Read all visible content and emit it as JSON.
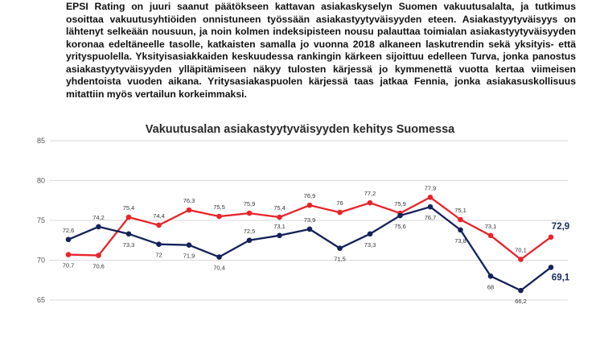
{
  "article": {
    "paragraph": "EPSI Rating on juuri saanut päätökseen kattavan asiakaskyselyn Suomen vakuutusalalta, ja tutkimus osoittaa vakuutusyhtiöiden onnistuneen työssään asiakastyytyväisyyden eteen. Asiakastyytyväisyys on lähtenyt selkeään nousuun, ja noin kolmen indeksipisteen nousu palauttaa toimialan asiakastyytyväisyyden koronaa edeltäneelle tasolle, katkaisten samalla jo vuonna 2018 alkaneen laskutrendin sekä yksityis- että yrityspuolella. Yksityisasiakkaiden keskuudessa rankingin kärkeen sijoittuu edelleen Turva, jonka panostus asiakastyytyväisyyden ylläpitämiseen näkyy tulosten kärjessä jo kymmenettä vuotta kertaa viimeisen yhdentoista vuoden aikana. Yritysasiakaspuolen kärjessä taas jatkaa Fennia, jonka asiakasuskollisuus mitattiin myös vertailun korkeimmaksi."
  },
  "chart_data": {
    "type": "line",
    "title": "Vakuutusalan asiakastyytyväisyyden kehitys Suomessa",
    "xlabel": "",
    "ylabel": "",
    "ylim": [
      65,
      85
    ],
    "yticks": [
      65,
      70,
      75,
      80,
      85
    ],
    "grid": true,
    "series": [
      {
        "color": "#e8242a",
        "values": [
          70.7,
          70.6,
          75.4,
          74.4,
          76.3,
          75.5,
          75.9,
          75.4,
          76.9,
          76,
          77.2,
          75.9,
          77.9,
          75.1,
          73.1,
          70.1,
          72.9
        ],
        "labels": [
          "70,7",
          "70,6",
          "75,4",
          "74,4",
          "76,3",
          "75,5",
          "75,9",
          "75,4",
          "76,9",
          "76",
          "77,2",
          "75,9",
          "77,9",
          "75,1",
          "73,1",
          "70,1",
          "72,9"
        ]
      },
      {
        "color": "#14215a",
        "values": [
          72.6,
          74.2,
          73.3,
          72,
          71.9,
          70.4,
          72.5,
          73.1,
          73.9,
          71.5,
          73.3,
          75.6,
          76.7,
          73.8,
          68,
          66.2,
          69.1
        ],
        "labels": [
          "72,6",
          "74,2",
          "73,3",
          "72",
          "71,9",
          "70,4",
          "72,5",
          "73,1",
          "73,9",
          "71,5",
          "73,3",
          "75,6",
          "76,7",
          "73,8",
          "68",
          "66,2",
          "69,1"
        ]
      }
    ]
  }
}
